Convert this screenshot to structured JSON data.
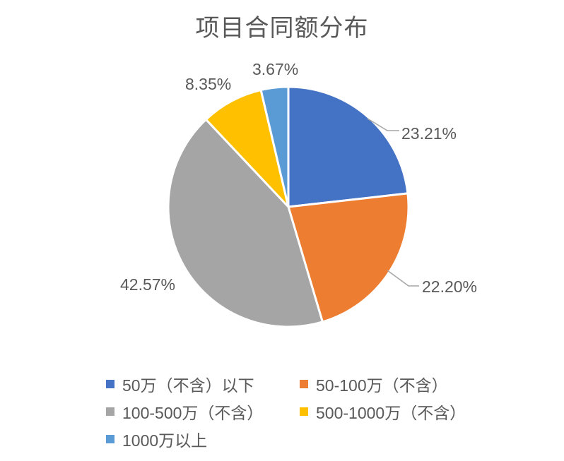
{
  "chart_data": {
    "type": "pie",
    "title": "项目合同额分布",
    "categories": [
      "50万（不含）以下",
      "50-100万（不含）",
      "100-500万（不含）",
      "500-1000万（不含）",
      "1000万以上"
    ],
    "values": [
      23.21,
      22.2,
      42.57,
      8.35,
      3.67
    ],
    "data_labels": [
      "23.21%",
      "22.20%",
      "42.57%",
      "8.35%",
      "3.67%"
    ],
    "colors": [
      "#4472C4",
      "#ED7D31",
      "#A5A5A5",
      "#FFC000",
      "#5B9BD5"
    ],
    "start_angle": "top",
    "direction": "clockwise",
    "legend_position": "bottom"
  }
}
